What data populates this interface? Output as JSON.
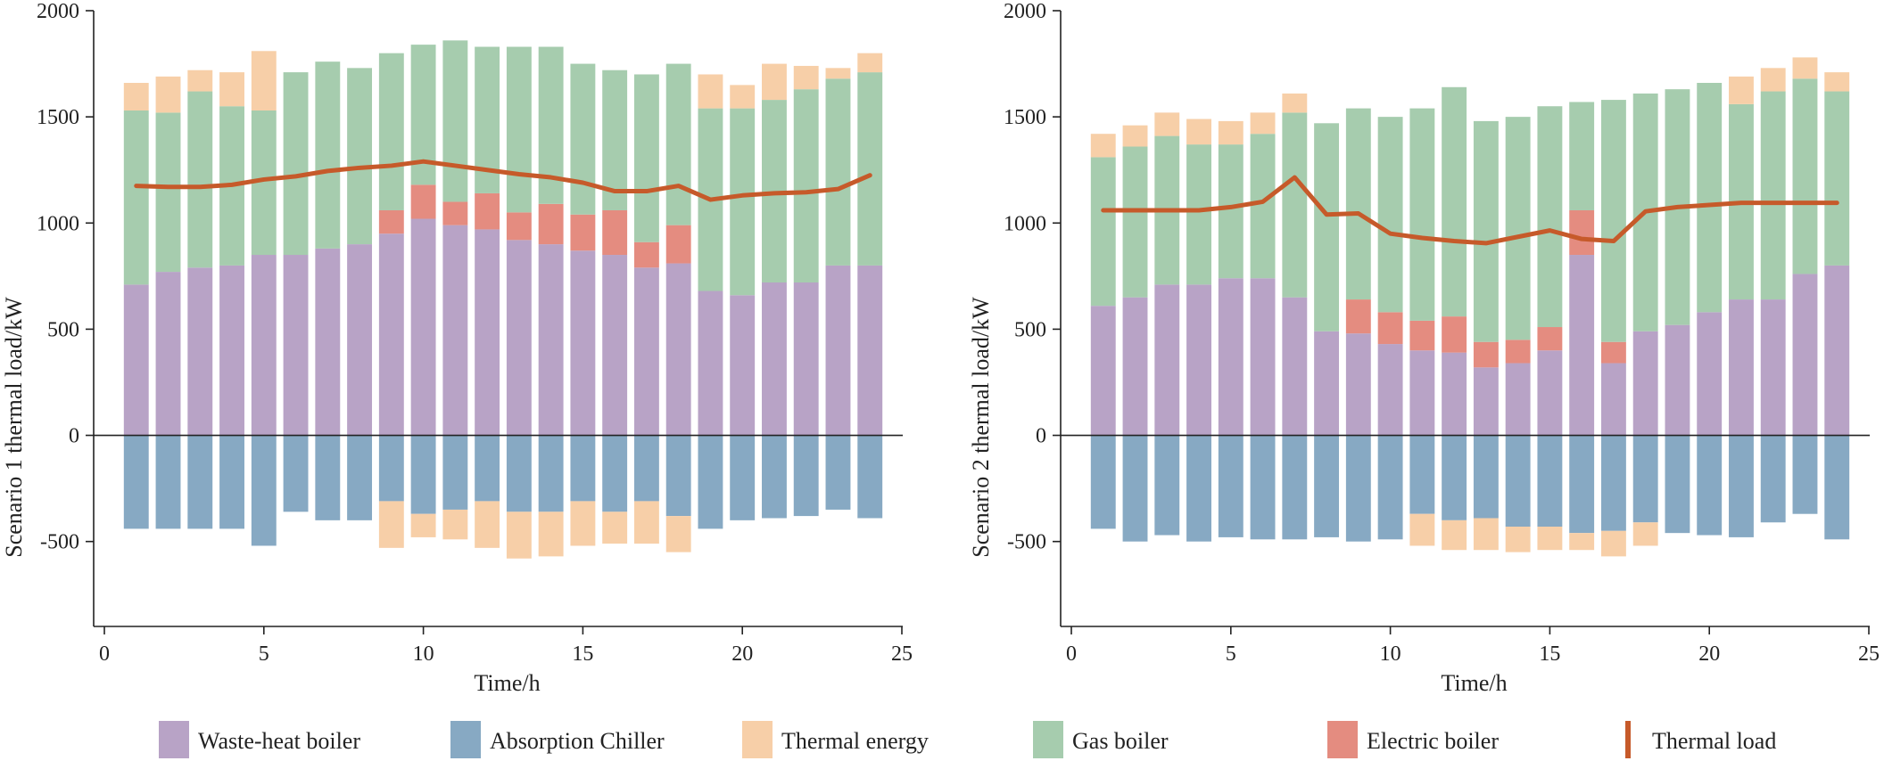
{
  "colors": {
    "waste_heat_boiler": "#b8a3c6",
    "absorption_chiller": "#87a9c3",
    "thermal_energy": "#f7cfa8",
    "gas_boiler": "#a6ccae",
    "electric_boiler": "#e48c80",
    "thermal_load": "#c65a2a",
    "axis": "#222222"
  },
  "legend": [
    {
      "key": "waste_heat_boiler",
      "label": "Waste-heat boiler",
      "kind": "patch"
    },
    {
      "key": "absorption_chiller",
      "label": "Absorption Chiller",
      "kind": "patch"
    },
    {
      "key": "thermal_energy",
      "label": "Thermal energy",
      "kind": "patch"
    },
    {
      "key": "gas_boiler",
      "label": "Gas boiler",
      "kind": "patch"
    },
    {
      "key": "electric_boiler",
      "label": "Electric boiler",
      "kind": "patch"
    },
    {
      "key": "thermal_load",
      "label": "Thermal load",
      "kind": "line"
    }
  ],
  "chart_data": [
    {
      "type": "bar",
      "stacked": true,
      "title": "",
      "xlabel": "Time/h",
      "ylabel": "Scenario 1 thermal load/kW",
      "xlim": [
        0,
        25
      ],
      "ylim": [
        -900,
        2000
      ],
      "xticks": [
        0,
        5,
        10,
        15,
        20,
        25
      ],
      "yticks": [
        -500,
        0,
        500,
        1000,
        1500,
        2000
      ],
      "x": [
        1,
        2,
        3,
        4,
        5,
        6,
        7,
        8,
        9,
        10,
        11,
        12,
        13,
        14,
        15,
        16,
        17,
        18,
        19,
        20,
        21,
        22,
        23,
        24
      ],
      "series": [
        {
          "key": "waste_heat_boiler",
          "name": "Waste-heat boiler",
          "values": [
            710,
            770,
            790,
            800,
            850,
            850,
            880,
            900,
            950,
            1020,
            990,
            970,
            920,
            900,
            870,
            850,
            790,
            810,
            680,
            660,
            720,
            720,
            800,
            800
          ]
        },
        {
          "key": "electric_boiler",
          "name": "Electric boiler",
          "values": [
            0,
            0,
            0,
            0,
            0,
            0,
            0,
            0,
            110,
            160,
            110,
            170,
            130,
            190,
            170,
            210,
            120,
            180,
            0,
            0,
            0,
            0,
            0,
            0
          ]
        },
        {
          "key": "gas_boiler",
          "name": "Gas boiler",
          "values": [
            820,
            750,
            830,
            750,
            680,
            860,
            880,
            830,
            740,
            660,
            760,
            690,
            780,
            740,
            710,
            660,
            790,
            760,
            860,
            880,
            860,
            910,
            880,
            910
          ]
        },
        {
          "key": "thermal_energy",
          "name": "Thermal energy",
          "values": [
            130,
            170,
            100,
            160,
            280,
            0,
            0,
            0,
            0,
            0,
            0,
            0,
            0,
            0,
            0,
            0,
            0,
            0,
            160,
            110,
            170,
            110,
            50,
            90
          ]
        },
        {
          "key": "absorption_chiller",
          "name": "Absorption Chiller",
          "values": [
            -440,
            -440,
            -440,
            -440,
            -520,
            -360,
            -400,
            -400,
            -310,
            -370,
            -350,
            -310,
            -360,
            -360,
            -310,
            -360,
            -310,
            -380,
            -440,
            -400,
            -390,
            -380,
            -350,
            -390
          ]
        },
        {
          "key": "thermal_energy",
          "name": "Thermal energy",
          "values": [
            0,
            0,
            0,
            0,
            0,
            0,
            0,
            0,
            -220,
            -110,
            -140,
            -220,
            -220,
            -210,
            -210,
            -150,
            -200,
            -170,
            0,
            0,
            0,
            0,
            0,
            0
          ]
        }
      ],
      "line": {
        "key": "thermal_load",
        "name": "Thermal load",
        "values": [
          1175,
          1170,
          1170,
          1180,
          1205,
          1220,
          1245,
          1260,
          1270,
          1290,
          1270,
          1250,
          1230,
          1215,
          1190,
          1150,
          1150,
          1175,
          1110,
          1130,
          1140,
          1145,
          1160,
          1225
        ]
      }
    },
    {
      "type": "bar",
      "stacked": true,
      "title": "",
      "xlabel": "Time/h",
      "ylabel": "Scenario 2 thermal load/kW",
      "xlim": [
        0,
        25
      ],
      "ylim": [
        -900,
        2000
      ],
      "xticks": [
        0,
        5,
        10,
        15,
        20,
        25
      ],
      "yticks": [
        -500,
        0,
        500,
        1000,
        1500,
        2000
      ],
      "x": [
        1,
        2,
        3,
        4,
        5,
        6,
        7,
        8,
        9,
        10,
        11,
        12,
        13,
        14,
        15,
        16,
        17,
        18,
        19,
        20,
        21,
        22,
        23,
        24
      ],
      "series": [
        {
          "key": "waste_heat_boiler",
          "name": "Waste-heat boiler",
          "values": [
            610,
            650,
            710,
            710,
            740,
            740,
            650,
            490,
            480,
            430,
            400,
            390,
            320,
            340,
            400,
            850,
            340,
            490,
            520,
            580,
            640,
            640,
            760,
            800
          ]
        },
        {
          "key": "electric_boiler",
          "name": "Electric boiler",
          "values": [
            0,
            0,
            0,
            0,
            0,
            0,
            0,
            0,
            160,
            150,
            140,
            170,
            120,
            110,
            110,
            210,
            100,
            0,
            0,
            0,
            0,
            0,
            0,
            0
          ]
        },
        {
          "key": "gas_boiler",
          "name": "Gas boiler",
          "values": [
            700,
            710,
            700,
            660,
            630,
            680,
            870,
            980,
            900,
            920,
            1000,
            1080,
            1040,
            1050,
            1040,
            510,
            1140,
            1120,
            1110,
            1080,
            920,
            980,
            920,
            820
          ]
        },
        {
          "key": "thermal_energy",
          "name": "Thermal energy",
          "values": [
            110,
            100,
            110,
            120,
            110,
            100,
            90,
            0,
            0,
            0,
            0,
            0,
            0,
            0,
            0,
            0,
            0,
            0,
            0,
            0,
            130,
            110,
            100,
            90
          ]
        },
        {
          "key": "absorption_chiller",
          "name": "Absorption Chiller",
          "values": [
            -440,
            -500,
            -470,
            -500,
            -480,
            -490,
            -490,
            -480,
            -500,
            -490,
            -370,
            -400,
            -390,
            -430,
            -430,
            -460,
            -450,
            -410,
            -460,
            -470,
            -480,
            -410,
            -370,
            -490
          ]
        },
        {
          "key": "thermal_energy",
          "name": "Thermal energy",
          "values": [
            0,
            0,
            0,
            0,
            0,
            0,
            0,
            0,
            0,
            0,
            -150,
            -140,
            -150,
            -120,
            -110,
            -80,
            -120,
            -110,
            0,
            0,
            0,
            0,
            0,
            0
          ]
        }
      ],
      "line": {
        "key": "thermal_load",
        "name": "Thermal load",
        "values": [
          1060,
          1060,
          1060,
          1060,
          1075,
          1100,
          1215,
          1040,
          1045,
          950,
          930,
          915,
          905,
          935,
          965,
          925,
          915,
          1055,
          1075,
          1085,
          1095,
          1095,
          1095,
          1095
        ]
      }
    }
  ]
}
